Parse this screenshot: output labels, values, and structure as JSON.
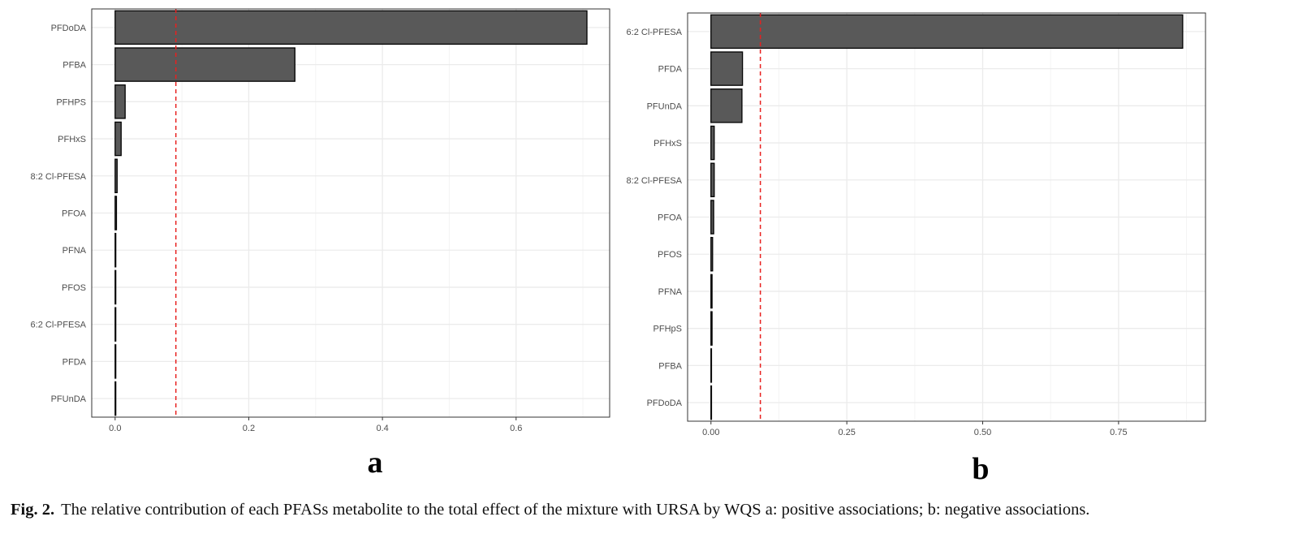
{
  "chart_data": [
    {
      "type": "bar",
      "orientation": "horizontal",
      "panel_label": "a",
      "categories": [
        "PFDoDA",
        "PFBA",
        "PFHPS",
        "PFHxS",
        "8:2 Cl-PFESA",
        "PFOA",
        "PFNA",
        "PFOS",
        "6:2 Cl-PFESA",
        "PFDA",
        "PFUnDA"
      ],
      "values": [
        0.706,
        0.269,
        0.015,
        0.009,
        0.003,
        0.002,
        0.001,
        0.001,
        0.001,
        0.001,
        0.001
      ],
      "xlim": [
        -0.035,
        0.74
      ],
      "xticks": [
        0.0,
        0.2,
        0.4,
        0.6
      ],
      "xtick_labels": [
        "0.0",
        "0.2",
        "0.4",
        "0.6"
      ],
      "threshold": 0.0909,
      "grid": true,
      "title": "",
      "xlabel": "",
      "ylabel": "",
      "colors": {
        "bar_fill": "#595959",
        "bar_stroke": "#000000",
        "threshold": "#e8201f",
        "grid": "#ebebeb",
        "grid_minor": "#f4f4f4",
        "frame": "#333333"
      }
    },
    {
      "type": "bar",
      "orientation": "horizontal",
      "panel_label": "b",
      "categories": [
        "6:2 Cl-PFESA",
        "PFDA",
        "PFUnDA",
        "PFHxS",
        "8:2 Cl-PFESA",
        "PFOA",
        "PFOS",
        "PFNA",
        "PFHpS",
        "PFBA",
        "PFDoDA"
      ],
      "values": [
        0.868,
        0.058,
        0.057,
        0.006,
        0.006,
        0.005,
        0.003,
        0.002,
        0.002,
        0.001,
        0.001
      ],
      "xlim": [
        -0.043,
        0.91
      ],
      "xticks": [
        0.0,
        0.25,
        0.5,
        0.75
      ],
      "xtick_labels": [
        "0.00",
        "0.25",
        "0.50",
        "0.75"
      ],
      "threshold": 0.0909,
      "grid": true,
      "title": "",
      "xlabel": "",
      "ylabel": "",
      "colors": {
        "bar_fill": "#595959",
        "bar_stroke": "#000000",
        "threshold": "#e8201f",
        "grid": "#ebebeb",
        "grid_minor": "#f4f4f4",
        "frame": "#333333"
      }
    }
  ],
  "caption": {
    "label": "Fig. 2.",
    "text": "The relative contribution of each PFASs metabolite to the total effect of the mixture with URSA by WQS a: positive associations; b: negative associations."
  }
}
